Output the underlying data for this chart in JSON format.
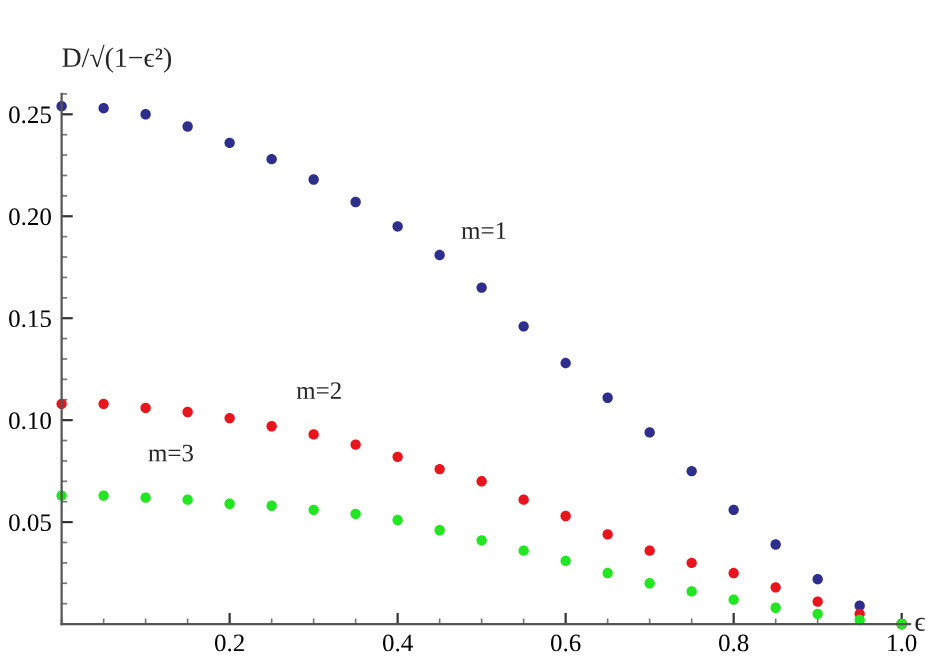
{
  "chart_data": {
    "type": "scatter",
    "xlabel": "ϵ",
    "ylabel": "D/√(1−ϵ²)",
    "x": [
      0,
      0.05,
      0.1,
      0.15,
      0.2,
      0.25,
      0.3,
      0.35,
      0.4,
      0.45,
      0.5,
      0.55,
      0.6,
      0.65,
      0.7,
      0.75,
      0.8,
      0.85,
      0.9,
      0.95,
      1.0
    ],
    "series": [
      {
        "name": "m=1",
        "color": "#2e2e8c",
        "values": [
          0.254,
          0.253,
          0.25,
          0.244,
          0.236,
          0.228,
          0.218,
          0.207,
          0.195,
          0.181,
          0.165,
          0.146,
          0.128,
          0.111,
          0.094,
          0.075,
          0.056,
          0.039,
          0.022,
          0.009,
          0.0
        ]
      },
      {
        "name": "m=2",
        "color": "#e8141e",
        "values": [
          0.108,
          0.108,
          0.106,
          0.104,
          0.101,
          0.097,
          0.093,
          0.088,
          0.082,
          0.076,
          0.07,
          0.061,
          0.053,
          0.044,
          0.036,
          0.03,
          0.025,
          0.018,
          0.011,
          0.005,
          0.0
        ]
      },
      {
        "name": "m=3",
        "color": "#22e622",
        "values": [
          0.063,
          0.063,
          0.062,
          0.061,
          0.059,
          0.058,
          0.056,
          0.054,
          0.051,
          0.046,
          0.041,
          0.036,
          0.031,
          0.025,
          0.02,
          0.016,
          0.012,
          0.008,
          0.005,
          0.002,
          0.0
        ]
      }
    ],
    "xlim": [
      0,
      1.01
    ],
    "ylim": [
      0,
      0.26
    ],
    "xticks": [
      0.2,
      0.4,
      0.6,
      0.8,
      {
        "value": 1.0,
        "label": "1.0"
      }
    ],
    "yticks": [
      0.05,
      {
        "value": 0.1,
        "label": "0.10"
      },
      0.15,
      {
        "value": 0.2,
        "label": "0.20"
      },
      0.25
    ],
    "marker": "circle",
    "grid": false,
    "legend": false
  }
}
